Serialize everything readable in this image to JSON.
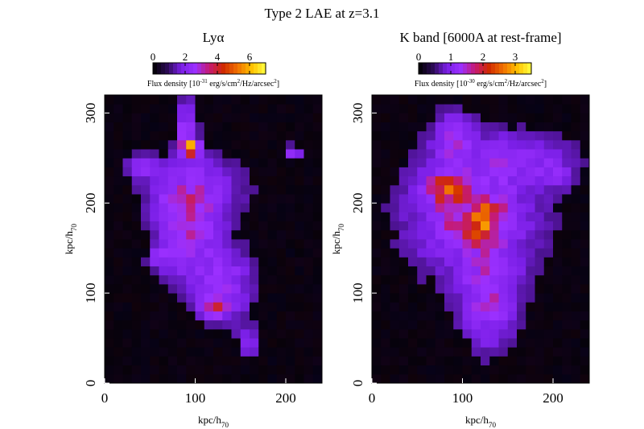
{
  "figure": {
    "title": "Type 2 LAE at z=3.1"
  },
  "colors": {
    "background": "#000000",
    "colormap": [
      "#000000",
      "#2a0a52",
      "#7a1fe6",
      "#9b30ff",
      "#c51a72",
      "#d02a00",
      "#f07000",
      "#ffc000",
      "#ffff40"
    ]
  },
  "chart_data": [
    {
      "type": "heatmap",
      "title": "Lyα",
      "xlabel": "kpc/h70",
      "ylabel": "kpc/h70",
      "xticks": [
        0,
        100,
        200
      ],
      "yticks": [
        0,
        100,
        200,
        300
      ],
      "xlim": [
        0,
        240
      ],
      "ylim": [
        0,
        320
      ],
      "colorbar": {
        "label": "Flux density [10^-31 erg/s/cm^2/Hz/arcsec^2]",
        "ticks": [
          0,
          2,
          4,
          6
        ],
        "range": [
          0,
          7
        ]
      },
      "cell_size_kpc": 10,
      "features": [
        {
          "x": 90,
          "y": 285,
          "sx": 8,
          "sy": 22,
          "amp": 1.8
        },
        {
          "x": 95,
          "y": 262,
          "sx": 6,
          "sy": 6,
          "amp": 4.5
        },
        {
          "x": 100,
          "y": 215,
          "sx": 40,
          "sy": 28,
          "amp": 1.4
        },
        {
          "x": 90,
          "y": 165,
          "sx": 22,
          "sy": 38,
          "amp": 1.9
        },
        {
          "x": 135,
          "y": 110,
          "sx": 22,
          "sy": 30,
          "amp": 1.6
        },
        {
          "x": 120,
          "y": 85,
          "sx": 10,
          "sy": 8,
          "amp": 2.1
        },
        {
          "x": 160,
          "y": 45,
          "sx": 10,
          "sy": 12,
          "amp": 1.1
        },
        {
          "x": 210,
          "y": 255,
          "sx": 6,
          "sy": 6,
          "amp": 2.0
        },
        {
          "x": 40,
          "y": 240,
          "sx": 12,
          "sy": 10,
          "amp": 1.1
        },
        {
          "x": 60,
          "y": 140,
          "sx": 8,
          "sy": 8,
          "amp": 1.3
        }
      ]
    },
    {
      "type": "heatmap",
      "title": "K band [6000A at rest-frame]",
      "xlabel": "kpc/h70",
      "ylabel": "kpc/h70",
      "xticks": [
        0,
        100,
        200
      ],
      "yticks": [
        0,
        100,
        200,
        300
      ],
      "xlim": [
        0,
        240
      ],
      "ylim": [
        0,
        320
      ],
      "colorbar": {
        "label": "Flux density [10^-30 erg/s/cm^2/Hz/arcsec^2]",
        "ticks": [
          0,
          1,
          2,
          3
        ],
        "range": [
          0,
          3.5
        ]
      },
      "cell_size_kpc": 10,
      "features": [
        {
          "x": 110,
          "y": 190,
          "sx": 55,
          "sy": 55,
          "amp": 0.9
        },
        {
          "x": 82,
          "y": 215,
          "sx": 14,
          "sy": 12,
          "amp": 1.3
        },
        {
          "x": 120,
          "y": 175,
          "sx": 12,
          "sy": 14,
          "amp": 1.2
        },
        {
          "x": 130,
          "y": 195,
          "sx": 12,
          "sy": 8,
          "amp": 0.7
        },
        {
          "x": 90,
          "y": 170,
          "sx": 8,
          "sy": 10,
          "amp": 0.5
        },
        {
          "x": 90,
          "y": 275,
          "sx": 14,
          "sy": 20,
          "amp": 0.7
        },
        {
          "x": 130,
          "y": 90,
          "sx": 22,
          "sy": 40,
          "amp": 0.85
        },
        {
          "x": 170,
          "y": 250,
          "sx": 40,
          "sy": 18,
          "amp": 0.55
        },
        {
          "x": 205,
          "y": 230,
          "sx": 12,
          "sy": 10,
          "amp": 0.4
        }
      ]
    }
  ]
}
